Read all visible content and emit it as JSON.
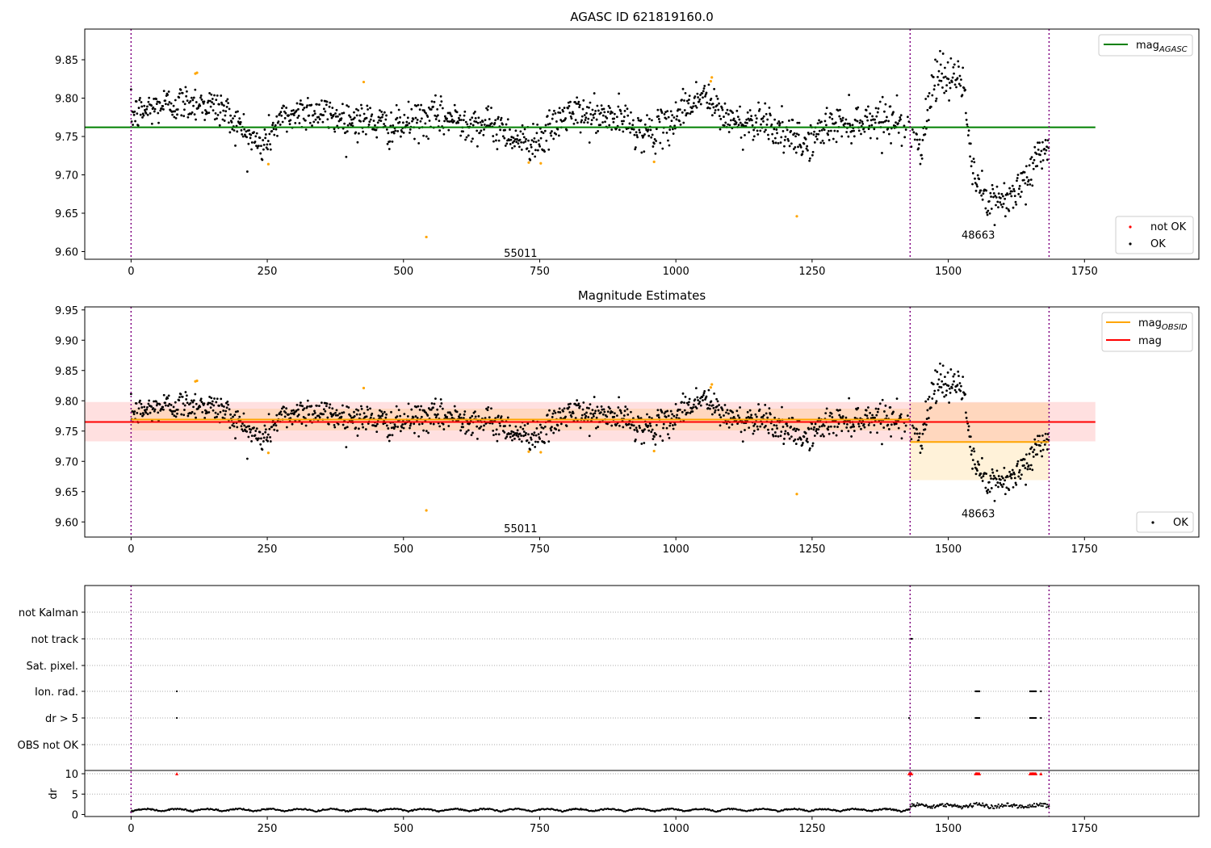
{
  "chart_data": [
    {
      "type": "scatter",
      "title": "AGASC ID 621819160.0",
      "xlim": [
        -85,
        1960
      ],
      "ylim": [
        9.59,
        9.89
      ],
      "xticks": [
        0,
        250,
        500,
        750,
        1000,
        1250,
        1500,
        1750
      ],
      "yticks": [
        9.6,
        9.65,
        9.7,
        9.75,
        9.8,
        9.85
      ],
      "vlines": [
        0,
        1430,
        1685
      ],
      "mag_agasc": 9.762,
      "mag_agasc_range": [
        0,
        1770
      ],
      "annotations": [
        {
          "x": 715,
          "y": 9.593,
          "text": "55011"
        },
        {
          "x": 1555,
          "y": 9.617,
          "text": "48663"
        }
      ],
      "legend_top": [
        {
          "label": "mag",
          "sub": "AGASC",
          "color": "#008000"
        }
      ],
      "legend_bottom": [
        {
          "label": "not OK",
          "color": "#ff0000"
        },
        {
          "label": "OK",
          "color": "#000000"
        }
      ],
      "not_ok_points": [
        [
          118,
          9.832
        ],
        [
          121,
          9.833
        ],
        [
          252,
          9.714
        ],
        [
          427,
          9.821
        ],
        [
          542,
          9.619
        ],
        [
          730,
          9.716
        ],
        [
          752,
          9.715
        ],
        [
          960,
          9.717
        ],
        [
          1064,
          9.822
        ],
        [
          1066,
          9.827
        ],
        [
          1222,
          9.646
        ]
      ]
    },
    {
      "type": "scatter",
      "title": "Magnitude Estimates",
      "xlim": [
        -85,
        1960
      ],
      "ylim": [
        9.575,
        9.955
      ],
      "xticks": [
        0,
        250,
        500,
        750,
        1000,
        1250,
        1500,
        1750
      ],
      "yticks": [
        9.6,
        9.65,
        9.7,
        9.75,
        9.8,
        9.85,
        9.9,
        9.95
      ],
      "vlines": [
        0,
        1430,
        1685
      ],
      "mag": 9.765,
      "mag_band": [
        9.733,
        9.798
      ],
      "mag_range": [
        0,
        1770
      ],
      "obsid_segments": [
        {
          "x0": 0,
          "x1": 1430,
          "mag": 9.769,
          "band": [
            9.751,
            9.787
          ]
        },
        {
          "x0": 1430,
          "x1": 1685,
          "mag": 9.732,
          "band": [
            9.669,
            9.797
          ]
        }
      ],
      "annotations": [
        {
          "x": 715,
          "y": 9.583,
          "text": "55011"
        },
        {
          "x": 1555,
          "y": 9.608,
          "text": "48663"
        }
      ],
      "legend_top": [
        {
          "label": "mag",
          "sub": "OBSID",
          "color": "#ffa500"
        },
        {
          "label": "mag",
          "sub": "",
          "color": "#ff0000"
        }
      ],
      "legend_bottom": [
        {
          "label": "OK",
          "color": "#000000"
        }
      ],
      "not_ok_points": [
        [
          118,
          9.832
        ],
        [
          121,
          9.833
        ],
        [
          252,
          9.714
        ],
        [
          427,
          9.821
        ],
        [
          542,
          9.619
        ],
        [
          730,
          9.716
        ],
        [
          752,
          9.715
        ],
        [
          960,
          9.717
        ],
        [
          1064,
          9.822
        ],
        [
          1066,
          9.827
        ],
        [
          1222,
          9.646
        ]
      ]
    },
    {
      "type": "scatter",
      "xlim": [
        -85,
        1960
      ],
      "xticks": [
        0,
        250,
        500,
        750,
        1000,
        1250,
        1500,
        1750
      ],
      "flag_labels": [
        "not Kalman",
        "not track",
        "Sat. pixel.",
        "Ion. rad.",
        "dr > 5",
        "OBS not OK"
      ],
      "flag_points": {
        "not track": [
          [
            1430,
            1434
          ]
        ],
        "Ion. rad.": [
          [
            84,
            84
          ],
          [
            1550,
            1558
          ],
          [
            1650,
            1661
          ],
          [
            1670,
            1670
          ]
        ],
        "dr > 5": [
          [
            84,
            84
          ],
          [
            1428,
            1428
          ],
          [
            1550,
            1558
          ],
          [
            1650,
            1661
          ],
          [
            1670,
            1670
          ]
        ]
      },
      "dr_ylabel": "dr",
      "dr_ylim": [
        -0.5,
        10.8
      ],
      "dr_yticks": [
        0,
        5,
        10
      ],
      "dr_capped": [
        [
          84,
          84
        ],
        [
          1428,
          1434
        ],
        [
          1550,
          1558
        ],
        [
          1650,
          1661
        ],
        [
          1670,
          1670
        ]
      ],
      "dr_cap": 10,
      "vlines": [
        0,
        1430,
        1685
      ]
    }
  ]
}
